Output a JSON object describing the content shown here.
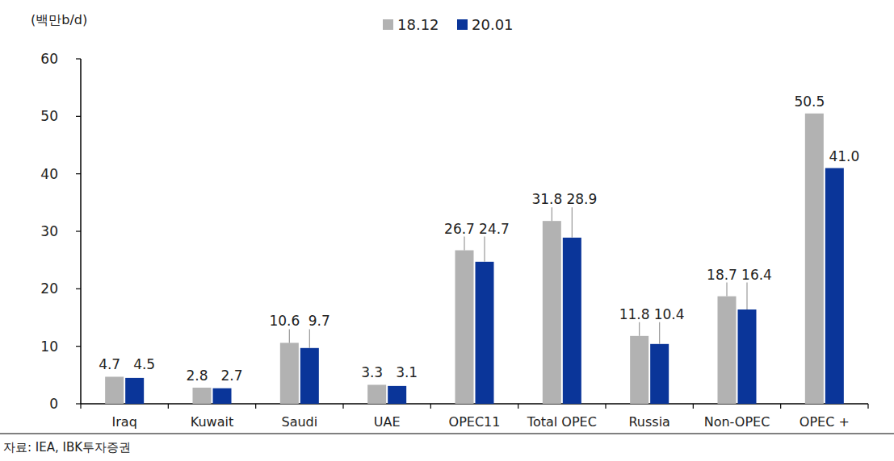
{
  "chart_data": {
    "type": "bar",
    "y_label": "(백만b/d)",
    "annotations": [
      "자료: IEA, IBK투자증권"
    ],
    "categories": [
      "Iraq",
      "Kuwait",
      "Saudi",
      "UAE",
      "OPEC11",
      "Total OPEC",
      "Russia",
      "Non-OPEC",
      "OPEC +"
    ],
    "series": [
      {
        "name": "18.12",
        "color": "#b2b2b2",
        "values": [
          4.7,
          2.8,
          10.6,
          3.3,
          26.7,
          31.8,
          11.8,
          18.7,
          50.5
        ]
      },
      {
        "name": "20.01",
        "color": "#0a3599",
        "values": [
          4.5,
          2.7,
          9.7,
          3.1,
          24.7,
          28.9,
          10.4,
          16.4,
          41
        ],
        "value_labels": [
          "4.5",
          "2.7",
          "9.7",
          "3.1",
          "24.7",
          "28.9",
          "10.4",
          "16.4",
          "41.0"
        ]
      }
    ],
    "ylim": [
      0,
      60
    ],
    "yticks": [
      0,
      10,
      20,
      30,
      40,
      50,
      60
    ],
    "grid": false,
    "legend": "top",
    "data_labels": true
  }
}
